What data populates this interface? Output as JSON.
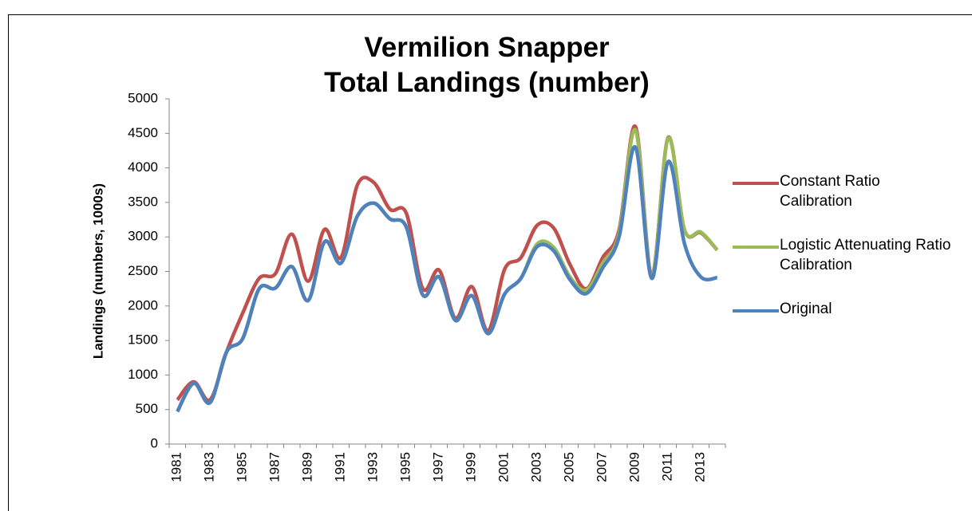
{
  "chart_data": {
    "type": "line",
    "title": "Vermilion Snapper\nTotal Landings (number)",
    "y_label": "Landings (numbers, 1000s)",
    "categories": [
      "1981",
      null,
      "1983",
      null,
      "1985",
      null,
      "1987",
      null,
      "1989",
      null,
      "1991",
      null,
      "1993",
      null,
      "1995",
      null,
      "1997",
      null,
      "1999",
      null,
      "2001",
      null,
      "2003",
      null,
      "2005",
      null,
      "2007",
      null,
      "2009",
      null,
      "2011",
      null,
      "2013",
      null
    ],
    "series": [
      {
        "name": "Constant Ratio Calibration",
        "color": "#c0504d",
        "values": [
          640,
          900,
          640,
          1330,
          1900,
          2400,
          2470,
          3040,
          2360,
          3110,
          2700,
          3750,
          3790,
          3400,
          3340,
          2250,
          2520,
          1820,
          2280,
          1640,
          2530,
          2700,
          3170,
          3130,
          2600,
          2250,
          2700,
          3100,
          4600,
          2450,
          4440,
          3100,
          3060,
          2810
        ]
      },
      {
        "name": "Logistic Attenuating Ratio Calibration",
        "color": "#9bbb59",
        "values": [
          470,
          880,
          600,
          1330,
          1530,
          2250,
          2260,
          2570,
          2080,
          2930,
          2620,
          3300,
          3490,
          3260,
          3140,
          2160,
          2420,
          1790,
          2150,
          1600,
          2170,
          2400,
          2900,
          2850,
          2420,
          2230,
          2620,
          3050,
          4550,
          2430,
          4430,
          3100,
          3070,
          2810
        ]
      },
      {
        "name": "Original",
        "color": "#4f81bd",
        "values": [
          470,
          880,
          600,
          1330,
          1530,
          2250,
          2260,
          2570,
          2080,
          2930,
          2620,
          3300,
          3490,
          3260,
          3140,
          2160,
          2420,
          1790,
          2150,
          1600,
          2170,
          2400,
          2860,
          2800,
          2380,
          2180,
          2550,
          3000,
          4300,
          2400,
          4090,
          2900,
          2420,
          2410
        ]
      }
    ],
    "ylim": [
      0,
      5000
    ],
    "yticks": [
      0,
      500,
      1000,
      1500,
      2000,
      2500,
      3000,
      3500,
      4000,
      4500,
      5000
    ],
    "grid": false,
    "legend": "right"
  }
}
